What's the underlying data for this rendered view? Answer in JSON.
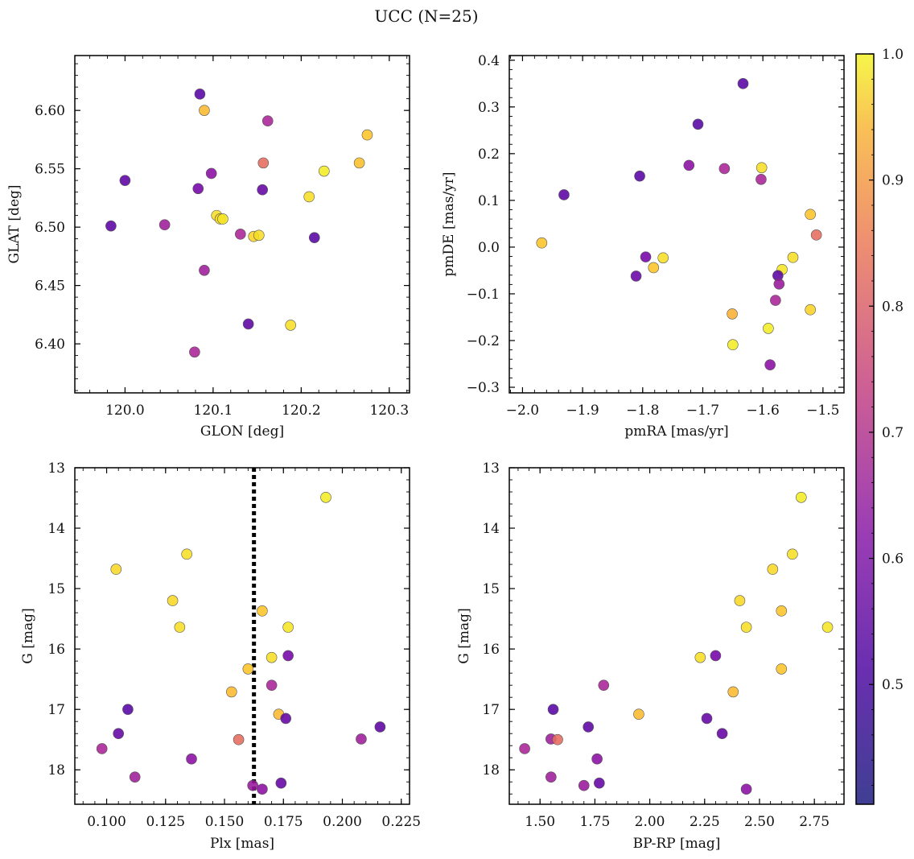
{
  "figure": {
    "title": "UCC (N=25)"
  },
  "colorbar": {
    "min": 0.405,
    "max": 1.0,
    "ticks": [
      0.5,
      0.6,
      0.7,
      0.8,
      0.9,
      1.0
    ],
    "tick_labels": [
      "0.5",
      "0.6",
      "0.7",
      "0.8",
      "0.9",
      "1.0"
    ],
    "colormap": "plasma"
  },
  "chart_data": [
    {
      "type": "scatter",
      "id": "glon-glat",
      "xlabel": "GLON [deg]",
      "ylabel": "GLAT [deg]",
      "xlim": [
        119.943,
        120.323
      ],
      "ylim": [
        6.358,
        6.647
      ],
      "y_inverted": false,
      "xticks": [
        120.0,
        120.1,
        120.2,
        120.3
      ],
      "xtick_labels": [
        "120.0",
        "120.1",
        "120.2",
        "120.3"
      ],
      "yticks": [
        6.4,
        6.45,
        6.5,
        6.55,
        6.6
      ],
      "ytick_labels": [
        "6.40",
        "6.45",
        "6.50",
        "6.55",
        "6.60"
      ],
      "points": [
        {
          "x": 120.085,
          "y": 6.614,
          "c": 0.43
        },
        {
          "x": 120.09,
          "y": 6.6,
          "c": 0.9
        },
        {
          "x": 120.162,
          "y": 6.591,
          "c": 0.58
        },
        {
          "x": 120.275,
          "y": 6.579,
          "c": 0.92
        },
        {
          "x": 120.266,
          "y": 6.555,
          "c": 0.91
        },
        {
          "x": 120.157,
          "y": 6.555,
          "c": 0.75
        },
        {
          "x": 120.226,
          "y": 6.548,
          "c": 0.98
        },
        {
          "x": 120.098,
          "y": 6.546,
          "c": 0.52
        },
        {
          "x": 120.0,
          "y": 6.54,
          "c": 0.44
        },
        {
          "x": 120.083,
          "y": 6.533,
          "c": 0.48
        },
        {
          "x": 120.156,
          "y": 6.532,
          "c": 0.45
        },
        {
          "x": 120.209,
          "y": 6.526,
          "c": 0.96
        },
        {
          "x": 120.104,
          "y": 6.51,
          "c": 0.96
        },
        {
          "x": 120.108,
          "y": 6.507,
          "c": 0.95
        },
        {
          "x": 120.111,
          "y": 6.507,
          "c": 0.97
        },
        {
          "x": 119.984,
          "y": 6.501,
          "c": 0.44
        },
        {
          "x": 120.045,
          "y": 6.502,
          "c": 0.56
        },
        {
          "x": 120.131,
          "y": 6.494,
          "c": 0.58
        },
        {
          "x": 120.146,
          "y": 6.492,
          "c": 0.94
        },
        {
          "x": 120.152,
          "y": 6.493,
          "c": 0.96
        },
        {
          "x": 120.215,
          "y": 6.491,
          "c": 0.43
        },
        {
          "x": 120.09,
          "y": 6.463,
          "c": 0.56
        },
        {
          "x": 120.14,
          "y": 6.417,
          "c": 0.44
        },
        {
          "x": 120.188,
          "y": 6.416,
          "c": 0.96
        },
        {
          "x": 120.079,
          "y": 6.393,
          "c": 0.58
        }
      ]
    },
    {
      "type": "scatter",
      "id": "pmra-pmde",
      "xlabel": "pmRA [mas/yr]",
      "ylabel": "pmDE [mas/yr]",
      "xlim": [
        -2.022,
        -1.465
      ],
      "ylim": [
        -0.312,
        0.41
      ],
      "y_inverted": false,
      "xticks": [
        -2.0,
        -1.9,
        -1.8,
        -1.7,
        -1.6,
        -1.5
      ],
      "xtick_labels": [
        "−2.0",
        "−1.9",
        "−1.8",
        "−1.7",
        "−1.6",
        "−1.5"
      ],
      "yticks": [
        -0.3,
        -0.2,
        -0.1,
        0.0,
        0.1,
        0.2,
        0.3,
        0.4
      ],
      "ytick_labels": [
        "−0.3",
        "−0.2",
        "−0.1",
        "0.0",
        "0.1",
        "0.2",
        "0.3",
        "0.4"
      ],
      "points": [
        {
          "x": -1.633,
          "y": 0.35,
          "c": 0.43
        },
        {
          "x": -1.708,
          "y": 0.263,
          "c": 0.43
        },
        {
          "x": -1.723,
          "y": 0.175,
          "c": 0.52
        },
        {
          "x": -1.664,
          "y": 0.168,
          "c": 0.58
        },
        {
          "x": -1.602,
          "y": 0.17,
          "c": 0.96
        },
        {
          "x": -1.805,
          "y": 0.152,
          "c": 0.43
        },
        {
          "x": -1.603,
          "y": 0.145,
          "c": 0.58
        },
        {
          "x": -1.931,
          "y": 0.112,
          "c": 0.44
        },
        {
          "x": -1.521,
          "y": 0.07,
          "c": 0.92
        },
        {
          "x": -1.511,
          "y": 0.026,
          "c": 0.75
        },
        {
          "x": -1.968,
          "y": 0.009,
          "c": 0.92
        },
        {
          "x": -1.55,
          "y": -0.022,
          "c": 0.96
        },
        {
          "x": -1.795,
          "y": -0.021,
          "c": 0.48
        },
        {
          "x": -1.766,
          "y": -0.023,
          "c": 0.96
        },
        {
          "x": -1.782,
          "y": -0.044,
          "c": 0.92
        },
        {
          "x": -1.568,
          "y": -0.048,
          "c": 0.97
        },
        {
          "x": -1.575,
          "y": -0.061,
          "c": 0.44
        },
        {
          "x": -1.811,
          "y": -0.062,
          "c": 0.46
        },
        {
          "x": -1.573,
          "y": -0.079,
          "c": 0.55
        },
        {
          "x": -1.579,
          "y": -0.114,
          "c": 0.58
        },
        {
          "x": -1.521,
          "y": -0.134,
          "c": 0.94
        },
        {
          "x": -1.651,
          "y": -0.143,
          "c": 0.88
        },
        {
          "x": -1.591,
          "y": -0.174,
          "c": 0.98
        },
        {
          "x": -1.65,
          "y": -0.209,
          "c": 0.98
        },
        {
          "x": -1.588,
          "y": -0.252,
          "c": 0.52
        }
      ]
    },
    {
      "type": "scatter",
      "id": "plx-g",
      "xlabel": "Plx [mas]",
      "ylabel": "G [mag]",
      "xlim": [
        0.0865,
        0.2285
      ],
      "ylim": [
        13.0,
        18.57
      ],
      "y_inverted": true,
      "xticks": [
        0.1,
        0.125,
        0.15,
        0.175,
        0.2,
        0.225
      ],
      "xtick_labels": [
        "0.100",
        "0.125",
        "0.150",
        "0.175",
        "0.200",
        "0.225"
      ],
      "yticks": [
        13,
        14,
        15,
        16,
        17,
        18
      ],
      "ytick_labels": [
        "13",
        "14",
        "15",
        "16",
        "17",
        "18"
      ],
      "vline": {
        "x": 0.1625,
        "style": "dotted"
      },
      "points": [
        {
          "x": 0.193,
          "y": 13.49,
          "c": 0.98
        },
        {
          "x": 0.134,
          "y": 14.43,
          "c": 0.96
        },
        {
          "x": 0.104,
          "y": 14.68,
          "c": 0.95
        },
        {
          "x": 0.128,
          "y": 15.2,
          "c": 0.95
        },
        {
          "x": 0.166,
          "y": 15.37,
          "c": 0.92
        },
        {
          "x": 0.131,
          "y": 15.64,
          "c": 0.96
        },
        {
          "x": 0.177,
          "y": 15.64,
          "c": 0.97
        },
        {
          "x": 0.177,
          "y": 16.11,
          "c": 0.48
        },
        {
          "x": 0.17,
          "y": 16.14,
          "c": 0.96
        },
        {
          "x": 0.16,
          "y": 16.33,
          "c": 0.92
        },
        {
          "x": 0.17,
          "y": 16.6,
          "c": 0.58
        },
        {
          "x": 0.153,
          "y": 16.71,
          "c": 0.9
        },
        {
          "x": 0.109,
          "y": 17.0,
          "c": 0.43
        },
        {
          "x": 0.173,
          "y": 17.08,
          "c": 0.9
        },
        {
          "x": 0.176,
          "y": 17.15,
          "c": 0.45
        },
        {
          "x": 0.216,
          "y": 17.29,
          "c": 0.44
        },
        {
          "x": 0.105,
          "y": 17.4,
          "c": 0.45
        },
        {
          "x": 0.208,
          "y": 17.49,
          "c": 0.56
        },
        {
          "x": 0.156,
          "y": 17.5,
          "c": 0.75
        },
        {
          "x": 0.098,
          "y": 17.65,
          "c": 0.58
        },
        {
          "x": 0.136,
          "y": 17.82,
          "c": 0.52
        },
        {
          "x": 0.112,
          "y": 18.12,
          "c": 0.56
        },
        {
          "x": 0.174,
          "y": 18.22,
          "c": 0.45
        },
        {
          "x": 0.162,
          "y": 18.26,
          "c": 0.55
        },
        {
          "x": 0.166,
          "y": 18.32,
          "c": 0.52
        }
      ]
    },
    {
      "type": "scatter",
      "id": "bprp-g",
      "xlabel": "BP-RP [mag]",
      "ylabel": "G [mag]",
      "xlim": [
        1.36,
        2.885
      ],
      "ylim": [
        13.0,
        18.57
      ],
      "y_inverted": true,
      "xticks": [
        1.5,
        1.75,
        2.0,
        2.25,
        2.5,
        2.75
      ],
      "xtick_labels": [
        "1.50",
        "1.75",
        "2.00",
        "2.25",
        "2.50",
        "2.75"
      ],
      "yticks": [
        13,
        14,
        15,
        16,
        17,
        18
      ],
      "ytick_labels": [
        "13",
        "14",
        "15",
        "16",
        "17",
        "18"
      ],
      "points": [
        {
          "x": 2.69,
          "y": 13.49,
          "c": 0.98
        },
        {
          "x": 2.65,
          "y": 14.43,
          "c": 0.96
        },
        {
          "x": 2.56,
          "y": 14.68,
          "c": 0.95
        },
        {
          "x": 2.41,
          "y": 15.2,
          "c": 0.95
        },
        {
          "x": 2.6,
          "y": 15.37,
          "c": 0.92
        },
        {
          "x": 2.44,
          "y": 15.64,
          "c": 0.96
        },
        {
          "x": 2.81,
          "y": 15.64,
          "c": 0.97
        },
        {
          "x": 2.3,
          "y": 16.11,
          "c": 0.48
        },
        {
          "x": 2.23,
          "y": 16.14,
          "c": 0.96
        },
        {
          "x": 2.6,
          "y": 16.33,
          "c": 0.92
        },
        {
          "x": 1.79,
          "y": 16.6,
          "c": 0.58
        },
        {
          "x": 2.38,
          "y": 16.71,
          "c": 0.9
        },
        {
          "x": 1.56,
          "y": 17.0,
          "c": 0.43
        },
        {
          "x": 1.95,
          "y": 17.08,
          "c": 0.9
        },
        {
          "x": 2.26,
          "y": 17.15,
          "c": 0.45
        },
        {
          "x": 1.72,
          "y": 17.29,
          "c": 0.44
        },
        {
          "x": 2.33,
          "y": 17.4,
          "c": 0.45
        },
        {
          "x": 1.55,
          "y": 17.49,
          "c": 0.56
        },
        {
          "x": 1.58,
          "y": 17.5,
          "c": 0.75
        },
        {
          "x": 1.43,
          "y": 17.65,
          "c": 0.58
        },
        {
          "x": 1.76,
          "y": 17.82,
          "c": 0.52
        },
        {
          "x": 1.55,
          "y": 18.12,
          "c": 0.56
        },
        {
          "x": 1.77,
          "y": 18.22,
          "c": 0.45
        },
        {
          "x": 1.7,
          "y": 18.26,
          "c": 0.55
        },
        {
          "x": 2.44,
          "y": 18.32,
          "c": 0.52
        }
      ]
    }
  ]
}
